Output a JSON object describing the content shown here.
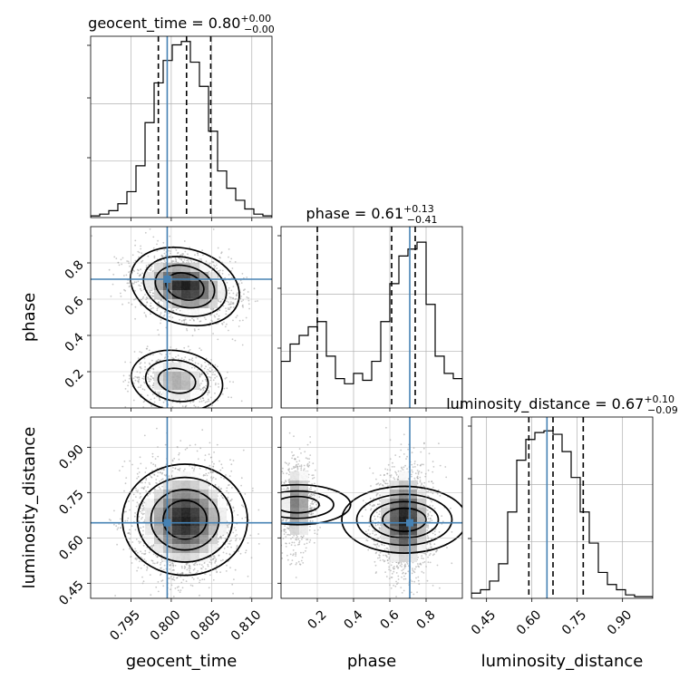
{
  "chart_data": {
    "type": "corner",
    "parameters": [
      {
        "key": "geocent_time",
        "label": "geocent_time",
        "range": [
          0.79,
          0.8125
        ],
        "ticks": [
          0.795,
          0.8,
          0.805,
          0.81
        ],
        "tick_labels": [
          "0.795",
          "0.800",
          "0.805",
          "0.810"
        ],
        "title": "geocent_time = 0.80",
        "title_plus": "+0.00",
        "title_minus": "−0.00",
        "injection": 0.7995,
        "quantiles": [
          0.7984,
          0.8019,
          0.8049
        ],
        "histogram": [
          0.01,
          0.02,
          0.04,
          0.08,
          0.15,
          0.3,
          0.55,
          0.78,
          0.91,
          1.0,
          1.02,
          0.9,
          0.76,
          0.5,
          0.27,
          0.17,
          0.1,
          0.05,
          0.02,
          0.01
        ]
      },
      {
        "key": "phase",
        "label": "phase",
        "range": [
          0.0,
          1.0
        ],
        "ticks": [
          0.2,
          0.4,
          0.6,
          0.8
        ],
        "tick_labels": [
          "0.2",
          "0.4",
          "0.6",
          "0.8"
        ],
        "title": "phase = 0.61",
        "title_plus": "+0.13",
        "title_minus": "−0.41",
        "injection": 0.71,
        "quantiles": [
          0.2,
          0.61,
          0.74
        ],
        "histogram": [
          0.27,
          0.37,
          0.42,
          0.47,
          0.5,
          0.3,
          0.17,
          0.14,
          0.2,
          0.16,
          0.27,
          0.5,
          0.72,
          0.88,
          0.92,
          0.96,
          0.6,
          0.3,
          0.2,
          0.17
        ]
      },
      {
        "key": "luminosity_distance",
        "label": "luminosity_distance",
        "range": [
          0.4,
          1.0
        ],
        "ticks": [
          0.45,
          0.6,
          0.75,
          0.9
        ],
        "tick_labels": [
          "0.45",
          "0.60",
          "0.75",
          "0.90"
        ],
        "title": "luminosity_distance = 0.67",
        "title_plus": "+0.10",
        "title_minus": "−0.09",
        "injection": 0.65,
        "quantiles": [
          0.59,
          0.67,
          0.77
        ],
        "histogram": [
          0.03,
          0.05,
          0.1,
          0.2,
          0.5,
          0.8,
          0.92,
          0.96,
          0.97,
          0.95,
          0.85,
          0.7,
          0.5,
          0.32,
          0.15,
          0.08,
          0.05,
          0.02,
          0.01,
          0.01
        ]
      }
    ],
    "pair_modes": {
      "geocent_time|phase": [
        {
          "center": [
            0.8017,
            0.67
          ],
          "spread": [
            0.003,
            0.09
          ],
          "weight": 0.72,
          "corr": -0.25
        },
        {
          "center": [
            0.8007,
            0.15
          ],
          "spread": [
            0.0026,
            0.075
          ],
          "weight": 0.28,
          "corr": -0.15
        }
      ],
      "geocent_time|luminosity_distance": [
        {
          "center": [
            0.8017,
            0.66
          ],
          "spread": [
            0.003,
            0.09
          ],
          "weight": 1.0,
          "corr": 0.0
        }
      ],
      "phase|luminosity_distance": [
        {
          "center": [
            0.68,
            0.66
          ],
          "spread": [
            0.08,
            0.09
          ],
          "weight": 0.72,
          "corr": 0.0
        },
        {
          "center": [
            0.09,
            0.71
          ],
          "spread": [
            0.05,
            0.08
          ],
          "weight": 0.28,
          "corr": 0.0
        }
      ]
    },
    "colors": {
      "truth": "#4682b4",
      "hist": "#000000",
      "grid": "#b0b0b0",
      "points": "#9a9a9a"
    },
    "grid": true
  }
}
